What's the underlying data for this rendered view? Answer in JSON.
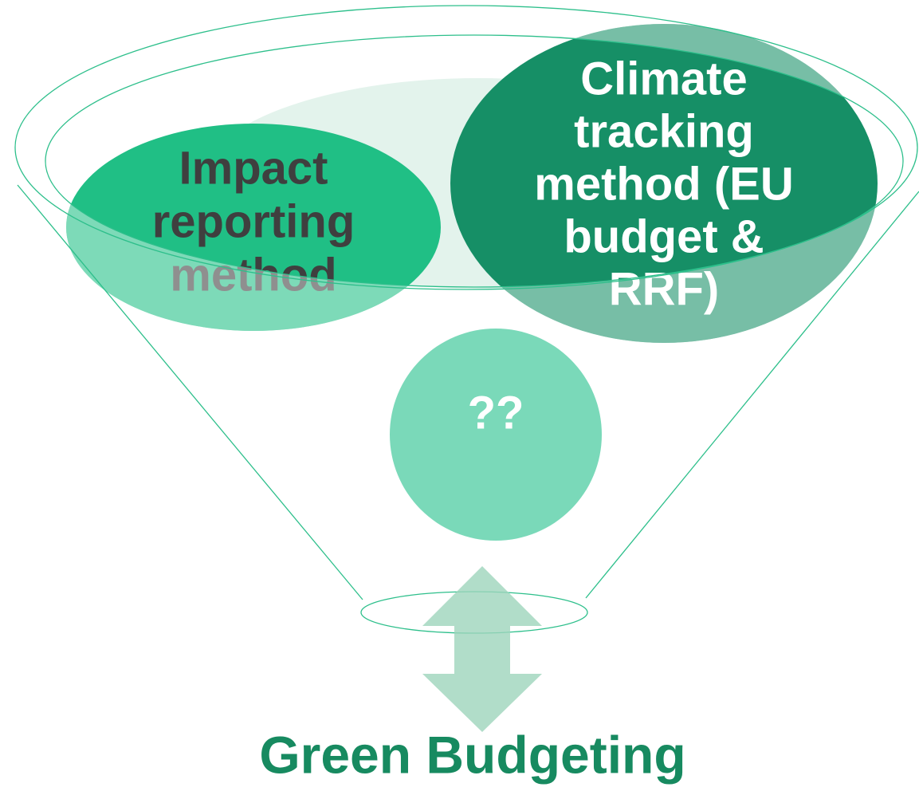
{
  "nodes": [
    {
      "label": [
        "Impact",
        "reporting",
        "method"
      ]
    },
    {
      "label": [
        "Climate",
        "tracking",
        "method (EU",
        "budget &",
        "RRF)"
      ]
    },
    {
      "label": [
        "??"
      ]
    }
  ],
  "output": {
    "label": "Green Budgeting"
  }
}
